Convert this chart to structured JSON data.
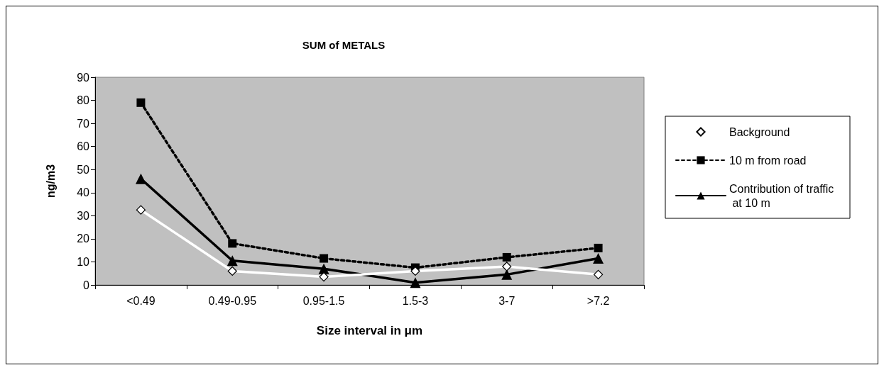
{
  "chart_data": {
    "type": "line",
    "title": "SUM of METALS",
    "xlabel": "Size interval in μm",
    "ylabel": "ng/m3",
    "categories": [
      "<0.49",
      "0.49-0.95",
      "0.95-1.5",
      "1.5-3",
      "3-7",
      ">7.2"
    ],
    "series": [
      {
        "name": "Background",
        "color": "#ffffff",
        "marker": "diamond",
        "line_style": "solid",
        "values": [
          32.5,
          6,
          3.5,
          6,
          8,
          4.5
        ]
      },
      {
        "name": "10 m from road",
        "color": "#000000",
        "marker": "square",
        "line_style": "dashed",
        "values": [
          79,
          18,
          11.5,
          7.5,
          12,
          16
        ]
      },
      {
        "name": "Contribution of traffic at 10 m",
        "color": "#000000",
        "marker": "triangle",
        "line_style": "solid",
        "values": [
          46,
          10.5,
          7,
          1,
          4.5,
          11.5
        ]
      }
    ],
    "ylim": [
      0,
      90
    ],
    "yticks": [
      0,
      10,
      20,
      30,
      40,
      50,
      60,
      70,
      80,
      90
    ],
    "grid": false,
    "legend": "right"
  }
}
